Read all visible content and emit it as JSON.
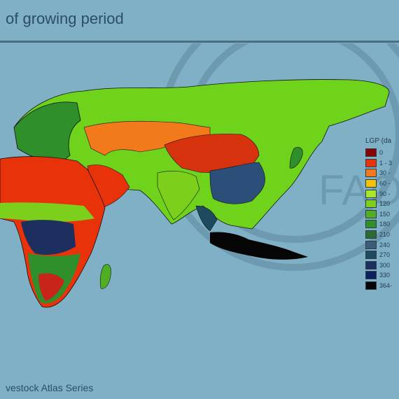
{
  "title": "of growing period",
  "footer": "vestock Atlas Series",
  "watermark_text": "FAO",
  "legend": {
    "title": "LGP (da",
    "items": [
      {
        "label": "0",
        "color": "#8b0000"
      },
      {
        "label": "1 - 3",
        "color": "#e8320a"
      },
      {
        "label": "30 -",
        "color": "#f27a1a"
      },
      {
        "label": "60 -",
        "color": "#f5c400"
      },
      {
        "label": "90 -",
        "color": "#a8e62a"
      },
      {
        "label": "120",
        "color": "#7ccf1a"
      },
      {
        "label": "150",
        "color": "#4fae22"
      },
      {
        "label": "180",
        "color": "#2f8f2a"
      },
      {
        "label": "210",
        "color": "#2c6b36"
      },
      {
        "label": "240",
        "color": "#3a5e78"
      },
      {
        "label": "270",
        "color": "#1d4a5e"
      },
      {
        "label": "300",
        "color": "#1c3060"
      },
      {
        "label": "330",
        "color": "#0f1f5e"
      },
      {
        "label": "364-",
        "color": "#050505"
      }
    ]
  }
}
